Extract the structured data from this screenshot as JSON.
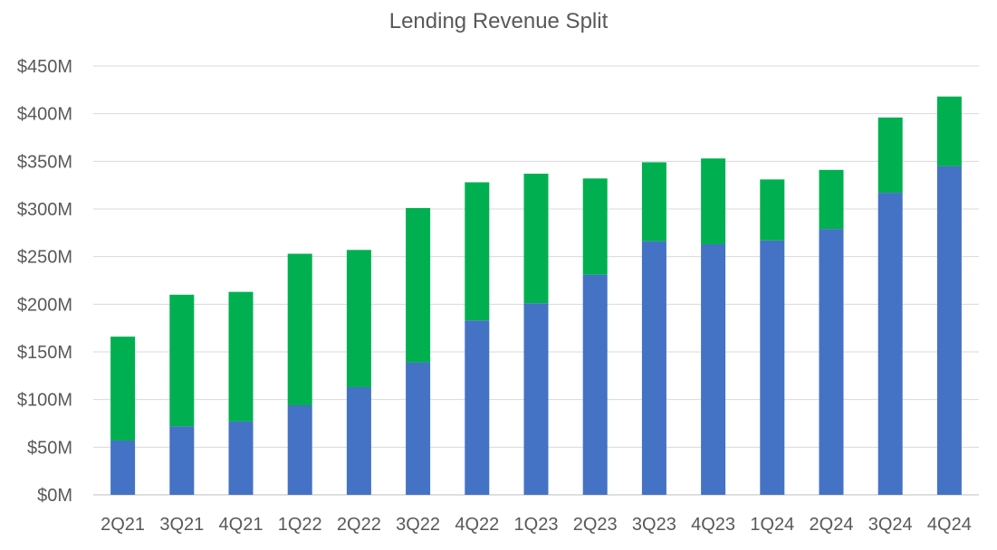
{
  "chart_data": {
    "type": "bar",
    "stacked": true,
    "title": "Lending Revenue Split",
    "xlabel": "",
    "ylabel": "",
    "ylim": [
      0,
      450
    ],
    "yticks": [
      0,
      50,
      100,
      150,
      200,
      250,
      300,
      350,
      400,
      450
    ],
    "ytick_labels": [
      "$0M",
      "$50M",
      "$100M",
      "$150M",
      "$200M",
      "$250M",
      "$300M",
      "$350M",
      "$400M",
      "$450M"
    ],
    "grid": true,
    "legend": "none",
    "categories": [
      "2Q21",
      "3Q21",
      "4Q21",
      "1Q22",
      "2Q22",
      "3Q22",
      "4Q22",
      "1Q23",
      "2Q23",
      "3Q23",
      "4Q23",
      "1Q24",
      "2Q24",
      "3Q24",
      "4Q24"
    ],
    "series": [
      {
        "color": "#4472C4",
        "values": [
          57,
          72,
          77,
          94,
          113,
          139,
          183,
          201,
          231,
          266,
          263,
          267,
          279,
          317,
          345
        ]
      },
      {
        "color": "#00B050",
        "values": [
          109,
          138,
          136,
          159,
          144,
          162,
          145,
          136,
          101,
          83,
          90,
          64,
          62,
          79,
          73
        ]
      }
    ]
  }
}
